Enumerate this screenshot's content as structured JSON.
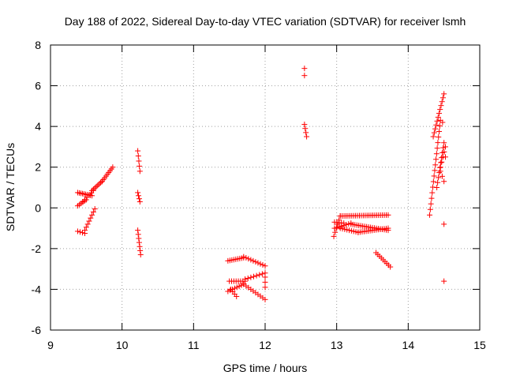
{
  "chart_data": {
    "type": "scatter",
    "title": "Day 188 of 2022, Sidereal Day-to-day VTEC variation (SDTVAR) for receiver lsmh",
    "xlabel": "GPS time / hours",
    "ylabel": "SDTVAR / TECUs",
    "xlim": [
      9,
      15
    ],
    "ylim": [
      -6,
      8
    ],
    "xticks": [
      "9",
      "10",
      "11",
      "12",
      "13",
      "14",
      "15"
    ],
    "yticks": [
      "-6",
      "-4",
      "-2",
      "0",
      "2",
      "4",
      "6",
      "8"
    ],
    "grid": true,
    "marker": "+",
    "marker_color": "#ff0000",
    "segments": [
      {
        "from": [
          9.38,
          0.75
        ],
        "to": [
          9.58,
          0.6
        ],
        "n": 10
      },
      {
        "from": [
          9.38,
          0.1
        ],
        "to": [
          9.5,
          0.4
        ],
        "n": 6
      },
      {
        "from": [
          9.45,
          0.3
        ],
        "to": [
          9.6,
          0.85
        ],
        "n": 6
      },
      {
        "from": [
          9.58,
          0.85
        ],
        "to": [
          9.72,
          1.3
        ],
        "n": 8
      },
      {
        "from": [
          9.72,
          1.3
        ],
        "to": [
          9.87,
          2.0
        ],
        "n": 9
      },
      {
        "from": [
          9.38,
          -1.15
        ],
        "to": [
          9.48,
          -1.25
        ],
        "n": 4
      },
      {
        "from": [
          9.48,
          -1.1
        ],
        "to": [
          9.62,
          -0.05
        ],
        "n": 8
      },
      {
        "from": [
          10.22,
          2.8
        ],
        "to": [
          10.25,
          1.8
        ],
        "n": 5
      },
      {
        "from": [
          10.22,
          0.75
        ],
        "to": [
          10.25,
          0.3
        ],
        "n": 4
      },
      {
        "from": [
          10.22,
          -1.1
        ],
        "to": [
          10.26,
          -2.3
        ],
        "n": 7
      },
      {
        "from": [
          11.48,
          -2.6
        ],
        "to": [
          11.7,
          -2.45
        ],
        "n": 9
      },
      {
        "from": [
          11.7,
          -2.4
        ],
        "to": [
          12.0,
          -2.85
        ],
        "n": 10
      },
      {
        "from": [
          11.5,
          -3.6
        ],
        "to": [
          11.72,
          -3.6
        ],
        "n": 8
      },
      {
        "from": [
          11.72,
          -3.5
        ],
        "to": [
          12.0,
          -3.2
        ],
        "n": 8
      },
      {
        "from": [
          11.48,
          -4.1
        ],
        "to": [
          11.7,
          -3.75
        ],
        "n": 8
      },
      {
        "from": [
          11.7,
          -3.75
        ],
        "to": [
          12.0,
          -4.5
        ],
        "n": 10
      },
      {
        "from": [
          11.52,
          -4.0
        ],
        "to": [
          11.6,
          -4.35
        ],
        "n": 4
      },
      {
        "from": [
          12.0,
          -3.4
        ],
        "to": [
          12.0,
          -3.9
        ],
        "n": 3
      },
      {
        "from": [
          12.55,
          6.85
        ],
        "to": [
          12.55,
          6.5
        ],
        "n": 2
      },
      {
        "from": [
          12.55,
          4.1
        ],
        "to": [
          12.58,
          3.5
        ],
        "n": 4
      },
      {
        "from": [
          12.96,
          -1.4
        ],
        "to": [
          13.05,
          -0.4
        ],
        "n": 6
      },
      {
        "from": [
          13.05,
          -0.4
        ],
        "to": [
          13.72,
          -0.35
        ],
        "n": 26
      },
      {
        "from": [
          12.97,
          -0.7
        ],
        "to": [
          13.1,
          -0.75
        ],
        "n": 5
      },
      {
        "from": [
          12.97,
          -1.0
        ],
        "to": [
          13.2,
          -0.75
        ],
        "n": 8
      },
      {
        "from": [
          13.2,
          -0.8
        ],
        "to": [
          13.72,
          -1.1
        ],
        "n": 20
      },
      {
        "from": [
          13.05,
          -1.0
        ],
        "to": [
          13.3,
          -1.2
        ],
        "n": 9
      },
      {
        "from": [
          13.3,
          -1.2
        ],
        "to": [
          13.72,
          -1.0
        ],
        "n": 16
      },
      {
        "from": [
          13.55,
          -2.2
        ],
        "to": [
          13.75,
          -2.9
        ],
        "n": 9
      },
      {
        "from": [
          14.3,
          -0.35
        ],
        "to": [
          14.45,
          4.3
        ],
        "n": 18
      },
      {
        "from": [
          14.35,
          3.5
        ],
        "to": [
          14.5,
          5.6
        ],
        "n": 12
      },
      {
        "from": [
          14.4,
          1.0
        ],
        "to": [
          14.5,
          3.2
        ],
        "n": 10
      },
      {
        "from": [
          14.45,
          2.0
        ],
        "to": [
          14.52,
          3.0
        ],
        "n": 5
      },
      {
        "from": [
          14.45,
          1.8
        ],
        "to": [
          14.5,
          1.3
        ],
        "n": 3
      }
    ],
    "extra_points": [
      [
        14.5,
        -0.8
      ],
      [
        14.5,
        -3.6
      ],
      [
        14.48,
        4.2
      ],
      [
        14.52,
        2.5
      ]
    ]
  }
}
